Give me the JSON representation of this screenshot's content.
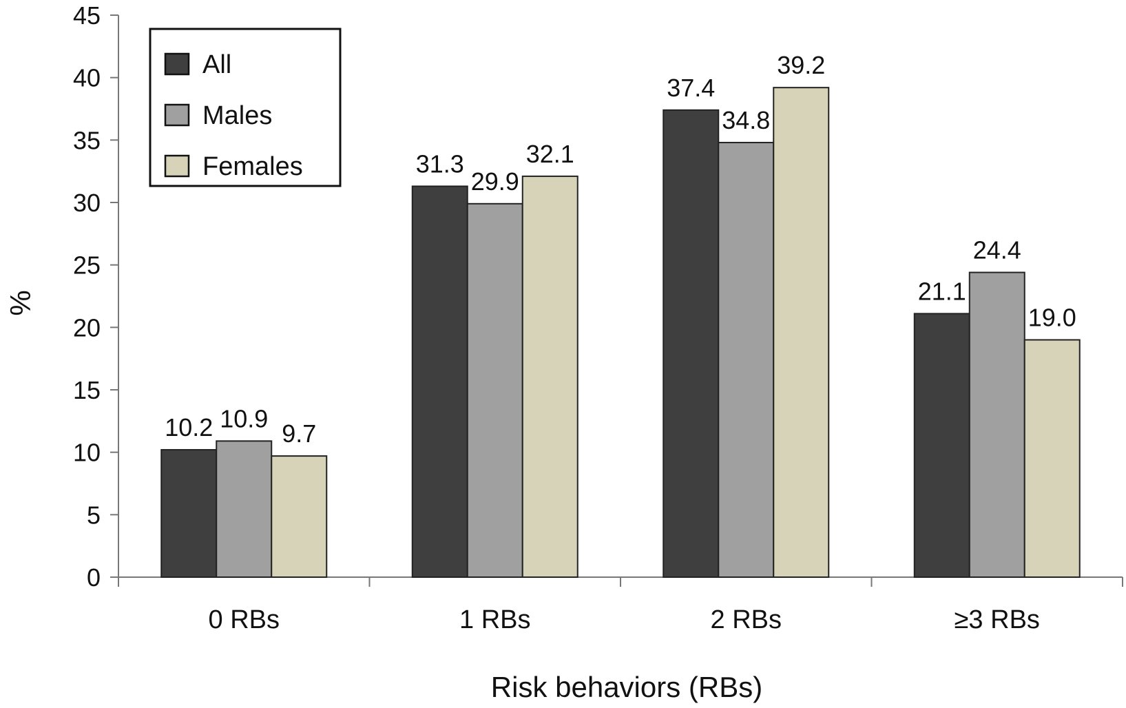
{
  "chart_data": {
    "type": "bar",
    "title": "",
    "xlabel": "Risk behaviors (RBs)",
    "ylabel": "%",
    "ylim": [
      0,
      45
    ],
    "yticks": [
      0,
      5,
      10,
      15,
      20,
      25,
      30,
      35,
      40,
      45
    ],
    "grid": false,
    "legend_position": "top-left",
    "categories": [
      "0 RBs",
      "1 RBs",
      "2 RBs",
      "≥3 RBs"
    ],
    "series": [
      {
        "name": "All",
        "color": "#3f3f3f",
        "values": [
          10.2,
          31.3,
          37.4,
          21.1
        ],
        "labels": [
          "10.2",
          "31.3",
          "37.4",
          "21.1"
        ]
      },
      {
        "name": "Males",
        "color": "#a0a0a0",
        "values": [
          10.9,
          29.9,
          34.8,
          24.4
        ],
        "labels": [
          "10.9",
          "29.9",
          "34.8",
          "24.4"
        ]
      },
      {
        "name": "Females",
        "color": "#d6d3b8",
        "values": [
          9.7,
          32.1,
          39.2,
          19.0
        ],
        "labels": [
          "9.7",
          "32.1",
          "39.2",
          "19.0"
        ]
      }
    ]
  }
}
